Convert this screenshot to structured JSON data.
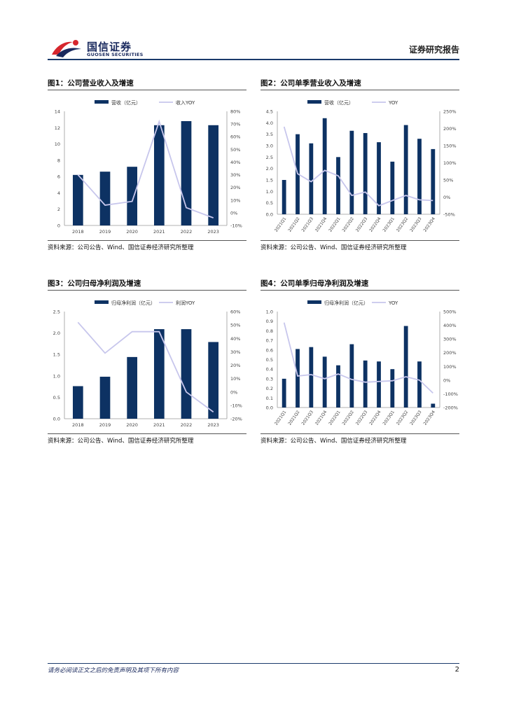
{
  "header": {
    "brand_cn": "国信证券",
    "brand_en": "GUOSEN SECURITIES",
    "report_type": "证券研究报告"
  },
  "footer": {
    "disclaimer": "请务必阅读正文之后的免责声明及其项下所有内容",
    "page_number": "2"
  },
  "colors": {
    "bar": "#0d3263",
    "line": "#c7c6ec",
    "brand_red": "#d6262d",
    "brand_navy": "#1a2a5e"
  },
  "figures": [
    {
      "title": "图1：公司营业收入及增速",
      "source": "资料来源：公司公告、Wind、国信证券经济研究所整理",
      "chart_data": {
        "type": "bar",
        "legend": {
          "bar": "营收（亿元）",
          "line": "收入YOY"
        },
        "categories": [
          "2018",
          "2019",
          "2020",
          "2021",
          "2022",
          "2023"
        ],
        "left_ticks": [
          "0",
          "2",
          "4",
          "6",
          "8",
          "10",
          "12",
          "14"
        ],
        "right_ticks": [
          "-10%",
          "0%",
          "10%",
          "20%",
          "30%",
          "40%",
          "50%",
          "60%",
          "70%",
          "80%"
        ],
        "ylim": [
          0,
          14
        ],
        "y2lim": [
          -10,
          80
        ],
        "series": [
          {
            "name": "营收（亿元）",
            "kind": "bar",
            "axis": "left",
            "values": [
              6.2,
              6.6,
              7.2,
              12.3,
              12.8,
              12.3
            ]
          },
          {
            "name": "收入YOY",
            "kind": "line",
            "axis": "right",
            "values": [
              30,
              6,
              9,
              72,
              4,
              -4
            ]
          }
        ]
      }
    },
    {
      "title": "图2：公司单季营业收入及增速",
      "source": "资料来源：公司公告、Wind、国信证券经济研究所整理",
      "chart_data": {
        "type": "bar",
        "legend": {
          "bar": "营收（亿元）",
          "line": "YOY"
        },
        "categories": [
          "2021Q1",
          "2021Q2",
          "2021Q3",
          "2021Q4",
          "2022Q1",
          "2022Q2",
          "2022Q3",
          "2022Q4",
          "2023Q1",
          "2023Q2",
          "2023Q3",
          "2023Q4"
        ],
        "left_ticks": [
          "0.0",
          "0.5",
          "1.0",
          "1.5",
          "2.0",
          "2.5",
          "3.0",
          "3.5",
          "4.0",
          "4.5"
        ],
        "right_ticks": [
          "-50%",
          "0%",
          "50%",
          "100%",
          "150%",
          "200%",
          "250%"
        ],
        "ylim": [
          0,
          4.5
        ],
        "y2lim": [
          -50,
          250
        ],
        "series": [
          {
            "name": "营收（亿元）",
            "kind": "bar",
            "axis": "left",
            "values": [
              1.5,
              3.5,
              3.1,
              4.2,
              2.5,
              3.65,
              3.55,
              3.15,
              2.3,
              3.9,
              3.3,
              2.85
            ]
          },
          {
            "name": "YOY",
            "kind": "line",
            "axis": "right",
            "values": [
              205,
              68,
              45,
              78,
              62,
              5,
              15,
              -25,
              -10,
              5,
              -8,
              -10
            ]
          }
        ]
      }
    },
    {
      "title": "图3：公司归母净利润及增速",
      "source": "资料来源：公司公告、Wind、国信证券经济研究所整理",
      "chart_data": {
        "type": "bar",
        "legend": {
          "bar": "归母净利润（亿元）",
          "line": "利润YOY"
        },
        "categories": [
          "2018",
          "2019",
          "2020",
          "2021",
          "2022",
          "2023"
        ],
        "left_ticks": [
          "0.0",
          "0.5",
          "1.0",
          "1.5",
          "2.0",
          "2.5"
        ],
        "right_ticks": [
          "-20%",
          "-10%",
          "0%",
          "10%",
          "20%",
          "30%",
          "40%",
          "50%",
          "60%"
        ],
        "ylim": [
          0,
          2.5
        ],
        "y2lim": [
          -20,
          60
        ],
        "series": [
          {
            "name": "归母净利润（亿元）",
            "kind": "bar",
            "axis": "left",
            "values": [
              0.76,
              0.98,
              1.44,
              2.09,
              2.09,
              1.79
            ]
          },
          {
            "name": "利润YOY",
            "kind": "line",
            "axis": "right",
            "values": [
              52,
              29,
              45,
              45,
              0,
              -15
            ]
          }
        ]
      }
    },
    {
      "title": "图4：公司单季归母净利润及增速",
      "source": "资料来源：公司公告、Wind、国信证券经济研究所整理",
      "chart_data": {
        "type": "bar",
        "legend": {
          "bar": "归母净利润（亿元）",
          "line": "YOY"
        },
        "categories": [
          "2021Q1",
          "2021Q2",
          "2021Q3",
          "2021Q4",
          "2022Q1",
          "2022Q2",
          "2022Q3",
          "2022Q4",
          "2023Q1",
          "2023Q2",
          "2023Q3",
          "2023Q4"
        ],
        "left_ticks": [
          "0.0",
          "0.1",
          "0.2",
          "0.3",
          "0.4",
          "0.5",
          "0.6",
          "0.7",
          "0.8",
          "0.9",
          "1.0"
        ],
        "right_ticks": [
          "-200%",
          "-100%",
          "0%",
          "100%",
          "200%",
          "300%",
          "400%",
          "500%"
        ],
        "ylim": [
          0,
          1.0
        ],
        "y2lim": [
          -200,
          500
        ],
        "series": [
          {
            "name": "归母净利润（亿元）",
            "kind": "bar",
            "axis": "left",
            "values": [
              0.3,
              0.61,
              0.63,
              0.53,
              0.44,
              0.66,
              0.49,
              0.48,
              0.4,
              0.85,
              0.48,
              0.04
            ]
          },
          {
            "name": "YOY",
            "kind": "line",
            "axis": "right",
            "values": [
              420,
              30,
              40,
              10,
              45,
              5,
              -15,
              -10,
              -5,
              25,
              0,
              -95
            ]
          }
        ]
      }
    }
  ]
}
